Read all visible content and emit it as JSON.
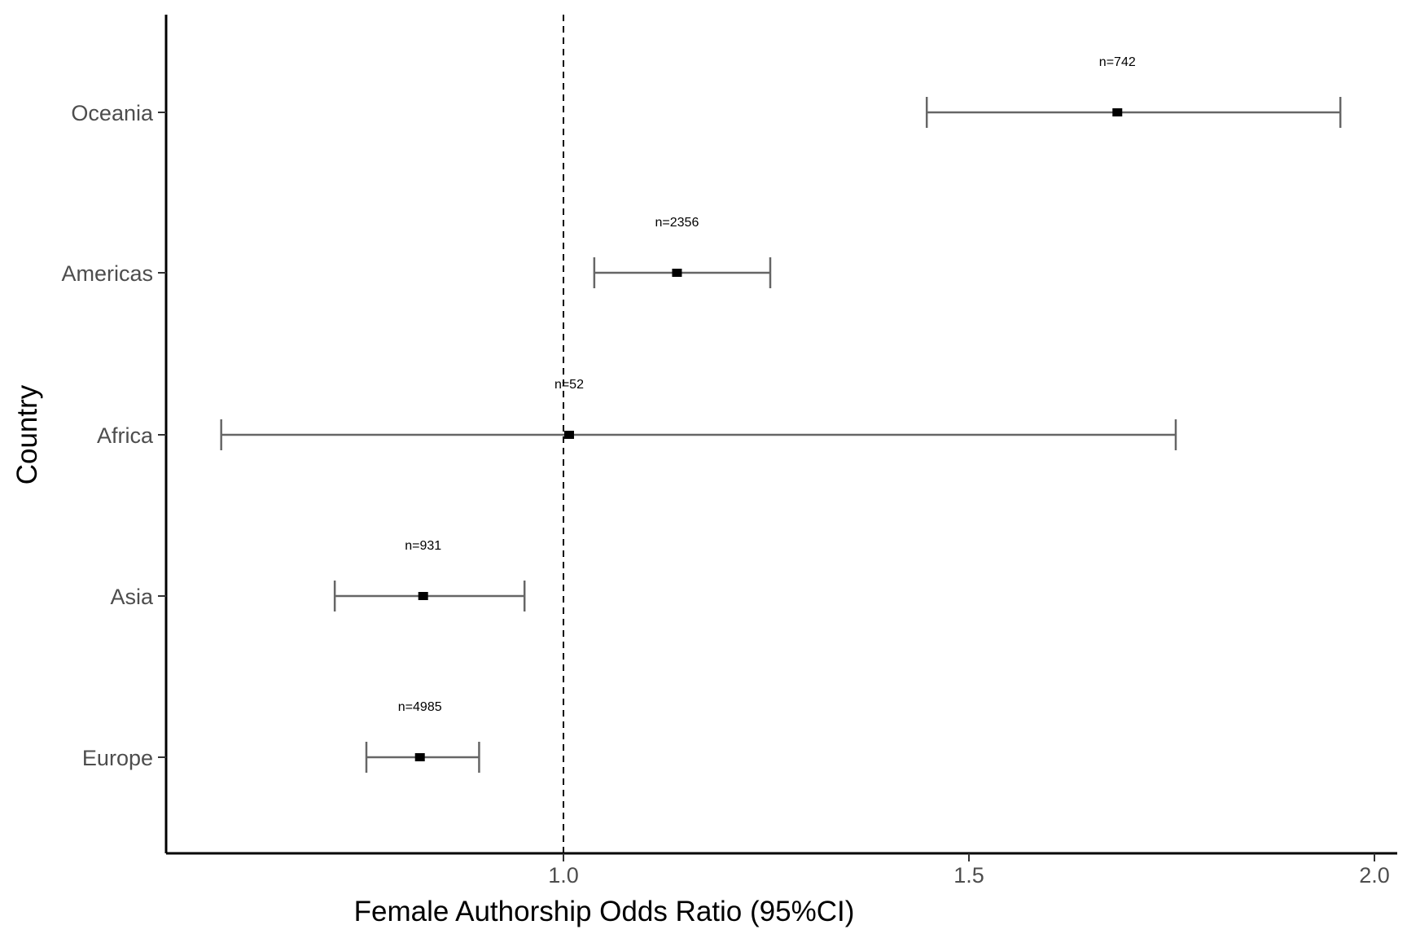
{
  "chart_data": {
    "type": "forest",
    "xlabel": "Female Authorship Odds Ratio (95%CI)",
    "ylabel": "Country",
    "xlim": [
      0.35,
      2.05
    ],
    "x_ticks": [
      {
        "value": 1.0,
        "label": "1.0"
      },
      {
        "value": 1.5,
        "label": "1.5"
      },
      {
        "value": 2.0,
        "label": "2.0"
      }
    ],
    "reference_line": 1.0,
    "grid": false,
    "categories": [
      "Oceania",
      "Americas",
      "Africa",
      "Asia",
      "Europe"
    ],
    "series": [
      {
        "category": "Oceania",
        "estimate": 1.683,
        "lower": 1.448,
        "upper": 1.958,
        "label": "n=742"
      },
      {
        "category": "Americas",
        "estimate": 1.14,
        "lower": 1.038,
        "upper": 1.255,
        "label": "n=2356"
      },
      {
        "category": "Africa",
        "estimate": 1.007,
        "lower": 0.578,
        "upper": 1.755,
        "label": "n=52"
      },
      {
        "category": "Asia",
        "estimate": 0.827,
        "lower": 0.718,
        "upper": 0.952,
        "label": "n=931"
      },
      {
        "category": "Europe",
        "estimate": 0.823,
        "lower": 0.757,
        "upper": 0.896,
        "label": "n=4985"
      }
    ],
    "colors": {
      "error_bar": "#666666",
      "point": "#000000",
      "axis": "#000000",
      "reference": "#000000"
    }
  }
}
